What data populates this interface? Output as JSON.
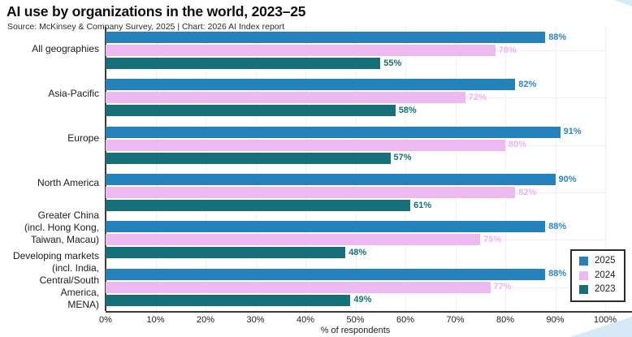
{
  "title": "AI use by organizations in the world, 2023–25",
  "subtitle": "Source: McKinsey & Company Survey, 2025 | Chart: 2026 AI Index report",
  "chart_data": {
    "type": "bar",
    "orientation": "horizontal",
    "title": "AI use by organizations in the world, 2023–25",
    "xlabel": "% of respondents",
    "xlim": [
      0,
      100
    ],
    "xticks": [
      "0%",
      "10%",
      "20%",
      "30%",
      "40%",
      "50%",
      "60%",
      "70%",
      "80%",
      "90%",
      "100%"
    ],
    "grid": "dotted vertical gridlines at each 10% tick; dotted horizontal gridline at each category center",
    "legend_position": "bottom-right",
    "value_suffix": "%",
    "categories": [
      "All geographies",
      "Asia-Pacific",
      "Europe",
      "North America",
      "Greater China\n(incl. Hong Kong,\nTaiwan, Macau)",
      "Developing markets\n(incl. India,\nCentral/South America,\nMENA)"
    ],
    "series": [
      {
        "name": "2025",
        "color": "#2581B9",
        "label_color": "#2E86BE",
        "values": [
          88,
          82,
          91,
          90,
          88,
          88
        ]
      },
      {
        "name": "2024",
        "color": "#ECB9F1",
        "label_color": "#EBB4F0",
        "values": [
          78,
          72,
          80,
          82,
          75,
          77
        ]
      },
      {
        "name": "2023",
        "color": "#166F79",
        "label_color": "#187078",
        "values": [
          55,
          58,
          57,
          61,
          48,
          49
        ]
      }
    ]
  },
  "legend": {
    "items": [
      {
        "label": "2025",
        "color": "#2581B9"
      },
      {
        "label": "2024",
        "color": "#ECB9F1"
      },
      {
        "label": "2023",
        "color": "#166F79"
      }
    ]
  },
  "colors": {
    "axis": "#3B3B3B",
    "text": "#1F1F1F",
    "vertical_grid": "#DDE2EA",
    "category_grid": "#F0D6F2",
    "corner_decoration": "#D6E9F7",
    "background": "#FFFFFF"
  }
}
